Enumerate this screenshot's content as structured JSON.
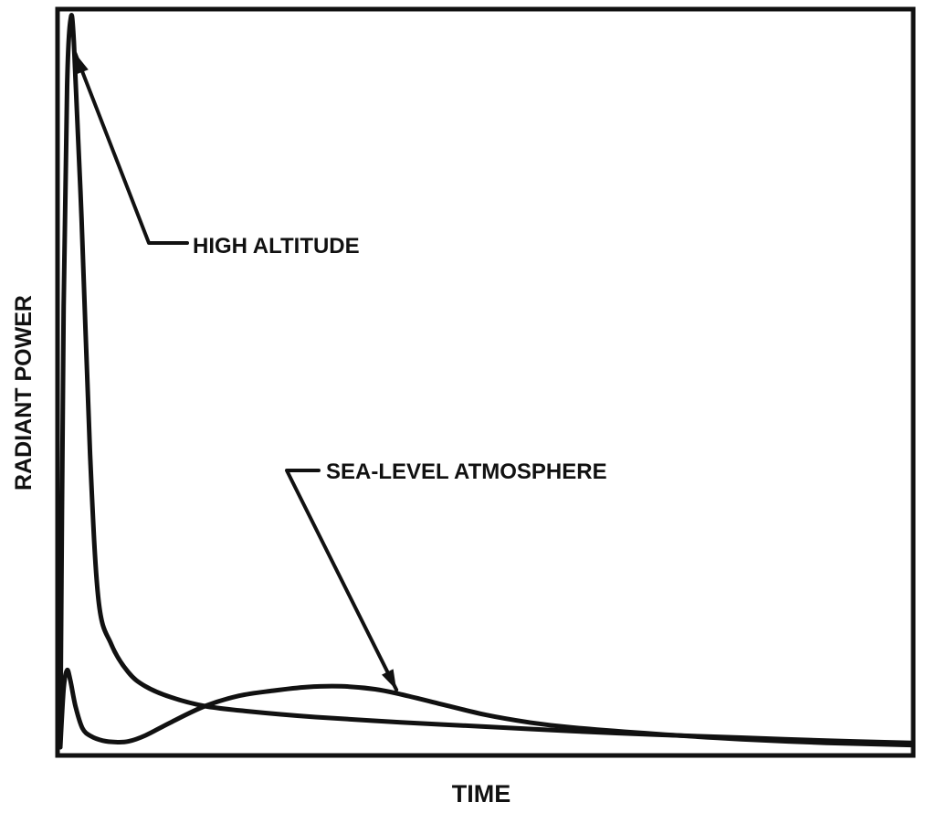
{
  "chart_data": {
    "type": "line",
    "title": "",
    "xlabel": "TIME",
    "ylabel": "RADIANT POWER",
    "x_ticks": false,
    "y_ticks": false,
    "grid": false,
    "xlim": [
      0,
      100
    ],
    "ylim": [
      0,
      100
    ],
    "line_color": "#111111",
    "series": [
      {
        "name": "HIGH ALTITUDE",
        "x": [
          0,
          0.4,
          0.8,
          1.2,
          1.6,
          2.5,
          3.5,
          4.5,
          6,
          8,
          10,
          13,
          17,
          22,
          30,
          40,
          50,
          60,
          70,
          80,
          90,
          100
        ],
        "y": [
          0,
          60,
          90,
          99,
          96,
          72,
          40,
          20,
          14,
          10.2,
          8.3,
          6.8,
          5.6,
          4.9,
          4.1,
          3.4,
          2.8,
          2.2,
          1.7,
          1.3,
          0.9,
          0.6
        ]
      },
      {
        "name": "SEA-LEVEL ATMOSPHERE",
        "x": [
          0,
          0.4,
          0.8,
          1.2,
          1.8,
          2.6,
          3.6,
          5,
          6.5,
          8,
          10,
          13,
          17,
          21,
          25,
          29,
          33,
          37,
          40,
          45,
          50,
          55,
          60,
          70,
          80,
          90,
          100
        ],
        "y": [
          0,
          8,
          10.5,
          9,
          5.5,
          2.6,
          1.5,
          0.9,
          0.7,
          0.8,
          1.6,
          3.4,
          5.6,
          7.0,
          7.7,
          8.2,
          8.3,
          7.9,
          7.2,
          5.8,
          4.4,
          3.4,
          2.7,
          1.8,
          1.1,
          0.6,
          0.3
        ]
      }
    ],
    "annotations": [
      {
        "text": "HIGH ALTITUDE",
        "series": 0,
        "points_to_x": 1.0
      },
      {
        "text": "SEA-LEVEL ATMOSPHERE",
        "series": 1,
        "points_to_x": 39.5
      }
    ]
  }
}
